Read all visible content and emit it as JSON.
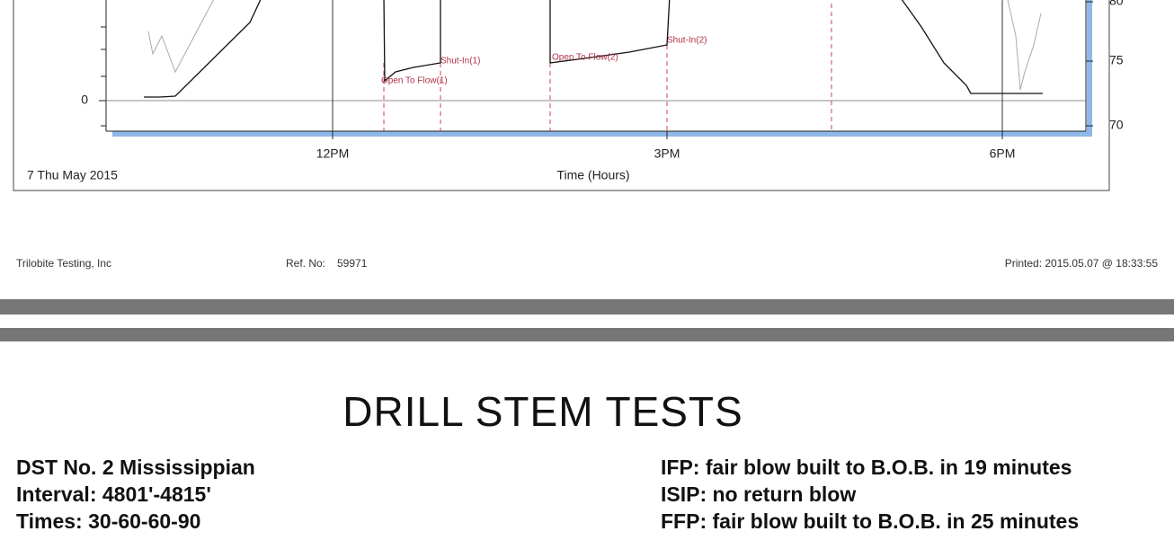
{
  "chart": {
    "annotations": [
      "Shut-In(1)",
      "Open To Flow(1)",
      "Open To Flow(2)",
      "Shut-In(2)"
    ],
    "y_left_ticks": [
      "0"
    ],
    "y_right_ticks": [
      "80",
      "75",
      "70"
    ],
    "x_ticks": [
      "12PM",
      "3PM",
      "6PM"
    ],
    "x_label": "Time (Hours)",
    "date": "7 Thu May 2015"
  },
  "footer": {
    "company": "Trilobite Testing, Inc",
    "ref_label": "Ref. No:",
    "ref_number": "59971",
    "printed": "Printed: 2015.05.07 @ 18:33:55"
  },
  "section": {
    "title": "DRILL STEM TESTS",
    "left": [
      "DST No. 2 Mississippian",
      "Interval: 4801'-4815'",
      "Times: 30-60-60-90"
    ],
    "right": [
      "IFP: fair blow built to B.O.B. in 19 minutes",
      "ISIP: no return blow",
      "FFP: fair blow built to B.O.B. in 25 minutes"
    ]
  }
}
